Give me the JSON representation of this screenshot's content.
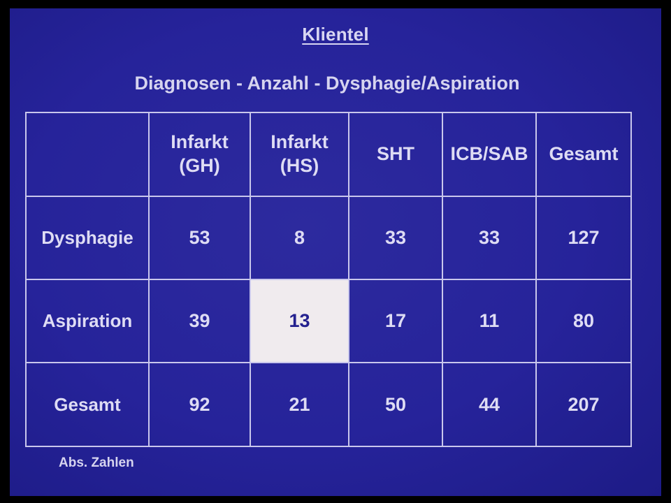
{
  "title": "Klientel",
  "subtitle": "Diagnosen - Anzahl - Dysphagie/Aspiration",
  "table": {
    "columns": [
      {
        "line1": "Infarkt",
        "line2": "(GH)"
      },
      {
        "line1": "Infarkt",
        "line2": "(HS)"
      },
      {
        "line1": "SHT",
        "line2": ""
      },
      {
        "line1": "ICB/SAB",
        "line2": ""
      },
      {
        "line1": "Gesamt",
        "line2": ""
      }
    ],
    "rows": [
      {
        "label": "Dysphagie",
        "values": [
          "53",
          "8",
          "33",
          "33",
          "127"
        ]
      },
      {
        "label": "Aspiration",
        "values": [
          "39",
          "13",
          "17",
          "11",
          "80"
        ]
      },
      {
        "label": "Gesamt",
        "values": [
          "92",
          "21",
          "50",
          "44",
          "207"
        ]
      }
    ],
    "highlighted_cell": {
      "row": 1,
      "column": 1
    }
  },
  "footnote": "Abs. Zahlen",
  "colors": {
    "background": "#26239a",
    "text": "#dedcf4",
    "highlight_bg": "#f0ebee",
    "highlight_text": "#24218f"
  }
}
